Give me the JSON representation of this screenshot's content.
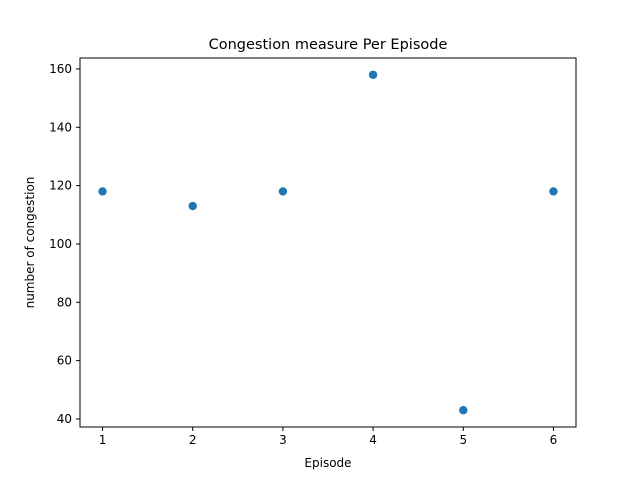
{
  "chart_data": {
    "type": "scatter",
    "title": "Congestion measure Per Episode",
    "xlabel": "Episode",
    "ylabel": "number of congestion",
    "x": [
      1,
      2,
      3,
      4,
      5,
      6
    ],
    "y": [
      118,
      113,
      118,
      158,
      43,
      118
    ],
    "xlim": [
      0.75,
      6.25
    ],
    "ylim": [
      37.25,
      163.75
    ],
    "xticks": [
      1,
      2,
      3,
      4,
      5,
      6
    ],
    "yticks": [
      40,
      60,
      80,
      100,
      120,
      140,
      160
    ],
    "grid": false,
    "marker_color": "#1f77b4"
  }
}
